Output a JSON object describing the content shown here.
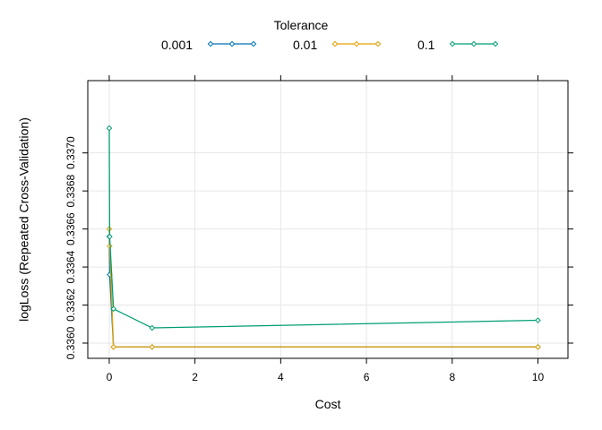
{
  "legend": {
    "title": "Tolerance",
    "entries": [
      {
        "label": "0.001",
        "color": "#0072B2"
      },
      {
        "label": "0.01",
        "color": "#E69F00"
      },
      {
        "label": "0.1",
        "color": "#009E73"
      }
    ]
  },
  "chart_data": {
    "type": "line",
    "title": "",
    "xlabel": "Cost",
    "ylabel": "logLoss (Repeated Cross-Validation)",
    "xlim": [
      -0.5,
      10.7
    ],
    "ylim": [
      0.33592,
      0.33738
    ],
    "xticks": [
      0,
      2,
      4,
      6,
      8,
      10
    ],
    "yticks": [
      0.336,
      0.3362,
      0.3364,
      0.3366,
      0.3368,
      0.337
    ],
    "ytick_labels": [
      "0.3360",
      "0.3362",
      "0.3364",
      "0.3366",
      "0.3368",
      "0.3370"
    ],
    "grid": true,
    "legend_position": "top",
    "series": [
      {
        "name": "0.001",
        "color": "#0072B2",
        "x": [
          0.001,
          0.01,
          0.1,
          1,
          10
        ],
        "y": [
          0.33656,
          0.33636,
          0.33598,
          0.33598,
          0.33598
        ]
      },
      {
        "name": "0.01",
        "color": "#E69F00",
        "x": [
          0.001,
          0.01,
          0.1,
          1,
          10
        ],
        "y": [
          0.3366,
          0.33651,
          0.33598,
          0.33598,
          0.33598
        ]
      },
      {
        "name": "0.1",
        "color": "#009E73",
        "x": [
          0.001,
          0.01,
          0.1,
          1,
          10
        ],
        "y": [
          0.33713,
          0.33656,
          0.33618,
          0.33608,
          0.33612
        ]
      }
    ]
  }
}
